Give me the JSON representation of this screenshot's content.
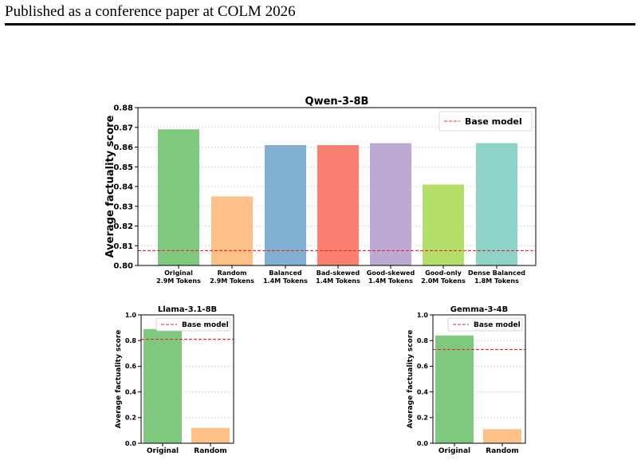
{
  "page": {
    "header": "Published as a conference paper at COLM 2026"
  },
  "colors": {
    "base_line": "#e8272c",
    "green": "#7fc97f",
    "orange": "#fdc086",
    "blue": "#80b1d3",
    "red": "#fb8072",
    "purple": "#bcaad4",
    "lime": "#b3de69",
    "teal": "#8dd3c7"
  },
  "chart_data": [
    {
      "id": "qwen",
      "type": "bar",
      "title": "Qwen-3-8B",
      "ylabel": "Average factuality score",
      "xlabel": "",
      "categories": [
        "Original",
        "Random",
        "Balanced",
        "Bad-skewed",
        "Good-skewed",
        "Good-only",
        "Dense Balanced"
      ],
      "sublabels": [
        "2.9M Tokens",
        "2.9M Tokens",
        "1.4M Tokens",
        "1.4M Tokens",
        "1.4M Tokens",
        "2.0M Tokens",
        "1.8M Tokens"
      ],
      "values": [
        0.869,
        0.835,
        0.861,
        0.861,
        0.862,
        0.841,
        0.862
      ],
      "bar_colors": [
        "#7fc97f",
        "#fdc086",
        "#80b1d3",
        "#fb8072",
        "#bcaad4",
        "#b3de69",
        "#8dd3c7"
      ],
      "baseline": {
        "name": "Base model",
        "value": 0.8075
      },
      "ylim": [
        0.8,
        0.88
      ],
      "yticks": [
        "0.80",
        "0.81",
        "0.82",
        "0.83",
        "0.84",
        "0.85",
        "0.86",
        "0.87",
        "0.88"
      ],
      "legend_position": "top-right",
      "grid": "y-dotted"
    },
    {
      "id": "llama",
      "type": "bar",
      "title": "Llama-3.1-8B",
      "ylabel": "Average factuality score",
      "xlabel": "",
      "categories": [
        "Original",
        "Random"
      ],
      "sublabels": [
        "",
        ""
      ],
      "values": [
        0.89,
        0.12
      ],
      "bar_colors": [
        "#7fc97f",
        "#fdc086"
      ],
      "baseline": {
        "name": "Base model",
        "value": 0.81
      },
      "ylim": [
        0.0,
        1.0
      ],
      "yticks": [
        "0.0",
        "0.2",
        "0.4",
        "0.6",
        "0.8",
        "1.0"
      ],
      "legend_position": "top-right",
      "grid": "y-dotted"
    },
    {
      "id": "gemma",
      "type": "bar",
      "title": "Gemma-3-4B",
      "ylabel": "Average factuality score",
      "xlabel": "",
      "categories": [
        "Original",
        "Random"
      ],
      "sublabels": [
        "",
        ""
      ],
      "values": [
        0.84,
        0.11
      ],
      "bar_colors": [
        "#7fc97f",
        "#fdc086"
      ],
      "baseline": {
        "name": "Base model",
        "value": 0.73
      },
      "ylim": [
        0.0,
        1.0
      ],
      "yticks": [
        "0.0",
        "0.2",
        "0.4",
        "0.6",
        "0.8",
        "1.0"
      ],
      "legend_position": "top-right",
      "grid": "y-dotted"
    }
  ]
}
